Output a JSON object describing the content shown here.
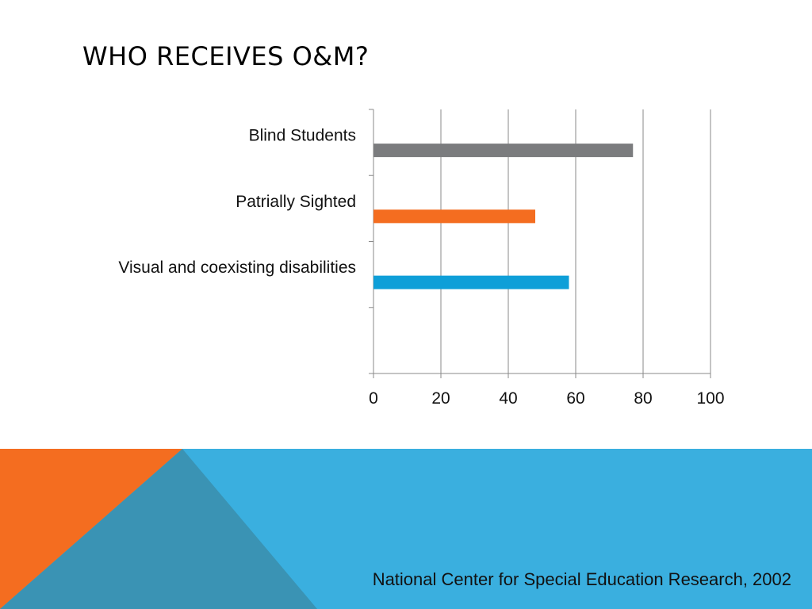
{
  "slide": {
    "title": "WHO RECEIVES O&M?",
    "citation": "National Center for Special Education Research, 2002"
  },
  "colors": {
    "band_blue": "#3AAFDF",
    "band_orange": "#F46D20",
    "band_dark_blue": "#3A93B4"
  },
  "chart_data": {
    "type": "bar",
    "orientation": "horizontal",
    "categories": [
      "Blind Students",
      "Patrially Sighted",
      "Visual and coexisting disabilities"
    ],
    "values": [
      77,
      48,
      58
    ],
    "colors": [
      "#7B7C7E",
      "#F46D20",
      "#0E9FD8"
    ],
    "xlim": [
      0,
      100
    ],
    "xticks": [
      "0",
      "20",
      "40",
      "60",
      "80",
      "100"
    ],
    "grid": true,
    "legend": "none"
  }
}
